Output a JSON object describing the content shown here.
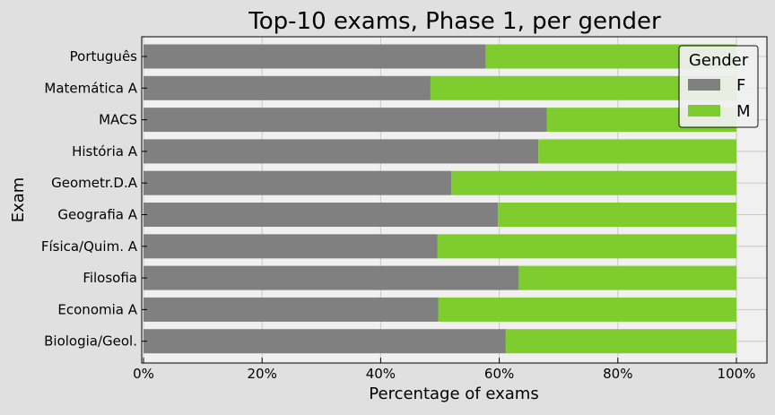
{
  "chart_data": {
    "type": "bar",
    "orientation": "horizontal",
    "stacked": true,
    "title": "Top-10 exams, Phase 1, per gender",
    "xlabel": "Percentage of exams",
    "ylabel": "Exam",
    "xlim": [
      0,
      1.05
    ],
    "x_ticks": [
      0,
      0.2,
      0.4,
      0.6,
      0.8,
      1.0
    ],
    "x_tick_labels": [
      "0%",
      "20%",
      "40%",
      "60%",
      "80%",
      "100%"
    ],
    "grid": true,
    "legend": {
      "title": "Gender",
      "placement": "top-right"
    },
    "categories": [
      "Português",
      "Matemática A",
      "MACS",
      "História A",
      "Geometr.D.A",
      "Geografia A",
      "Física/Quim. A",
      "Filosofia",
      "Economia A",
      "Biologia/Geol."
    ],
    "series": [
      {
        "name": "F",
        "color": "#808080",
        "values": [
          0.577,
          0.484,
          0.68,
          0.666,
          0.519,
          0.598,
          0.496,
          0.633,
          0.497,
          0.611
        ]
      },
      {
        "name": "M",
        "color": "#7fcc2f",
        "values": [
          0.423,
          0.516,
          0.32,
          0.334,
          0.481,
          0.402,
          0.504,
          0.367,
          0.503,
          0.389
        ]
      }
    ]
  }
}
